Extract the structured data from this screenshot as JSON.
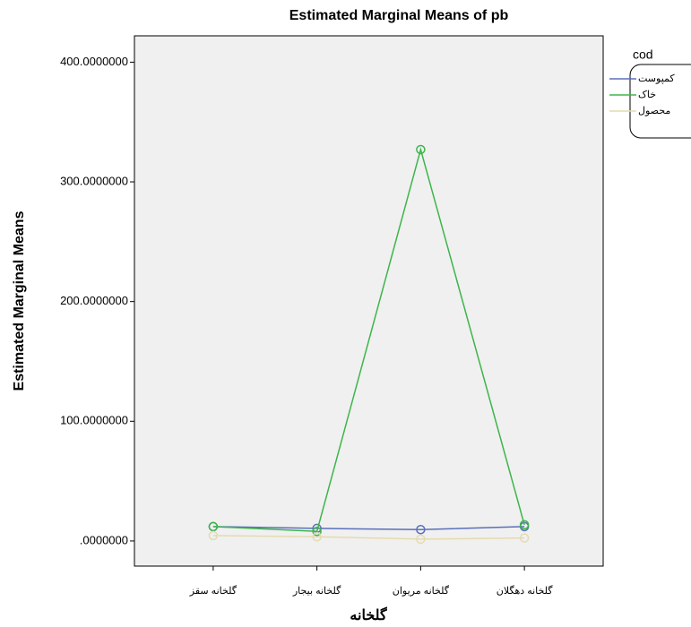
{
  "chart_data": {
    "type": "line",
    "title": "Estimated Marginal Means of pb",
    "y_label": "Estimated Marginal Means",
    "x_label": "گلخانه",
    "legend_title": "cod",
    "legend_position": "right",
    "categories": [
      "گلخانه سقز",
      "گلخانه بیجار",
      "گلخانه مریوان",
      "گلخانه دهگلان"
    ],
    "series": [
      {
        "name": "کمپوست",
        "color": "#5b6fba",
        "values": [
          12,
          10.5,
          9.5,
          12
        ]
      },
      {
        "name": "خاک",
        "color": "#3db54a",
        "values": [
          12,
          8,
          327,
          13.5
        ]
      },
      {
        "name": "محصول",
        "color": "#e3dbb0",
        "values": [
          4.5,
          3.5,
          1.5,
          2.5
        ]
      }
    ],
    "ylim": [
      -21,
      422
    ],
    "yticks": [
      {
        "value": 0,
        "label": ".0000000"
      },
      {
        "value": 100,
        "label": "100.0000000"
      },
      {
        "value": 200,
        "label": "200.0000000"
      },
      {
        "value": 300,
        "label": "300.0000000"
      },
      {
        "value": 400,
        "label": "400.0000000"
      }
    ]
  }
}
